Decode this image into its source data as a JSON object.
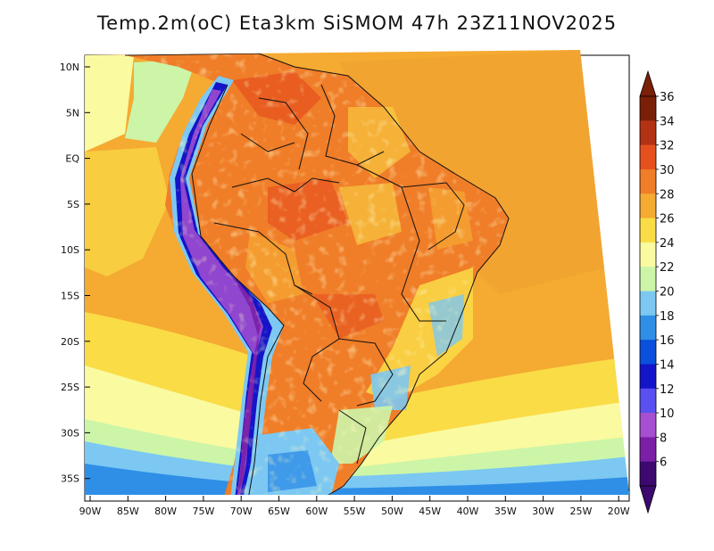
{
  "title": "Temp.2m(oC) Eta3km SiSMOM 47h 23Z11NOV2025",
  "map": {
    "lat_ticks": [
      "10N",
      "5N",
      "EQ",
      "5S",
      "10S",
      "15S",
      "20S",
      "25S",
      "30S",
      "35S"
    ],
    "lon_ticks": [
      "90W",
      "85W",
      "80W",
      "75W",
      "70W",
      "65W",
      "60W",
      "55W",
      "50W",
      "45W",
      "40W",
      "35W",
      "30W",
      "25W",
      "20W"
    ]
  },
  "colorbar": {
    "labels": [
      "6",
      "8",
      "10",
      "12",
      "14",
      "16",
      "18",
      "20",
      "22",
      "24",
      "26",
      "28",
      "30",
      "32",
      "34",
      "36"
    ],
    "colors": [
      "#3c0a6e",
      "#7a1fa6",
      "#a64fd0",
      "#5a4ff0",
      "#1414c8",
      "#0a50dc",
      "#2f8fe6",
      "#7cc8f2",
      "#ccf5a8",
      "#fafaa0",
      "#fadc46",
      "#f5aa32",
      "#f07d28",
      "#e6501e",
      "#b43214",
      "#7a2008"
    ],
    "low_color": "#3c0a6e",
    "high_color": "#7a2008"
  }
}
